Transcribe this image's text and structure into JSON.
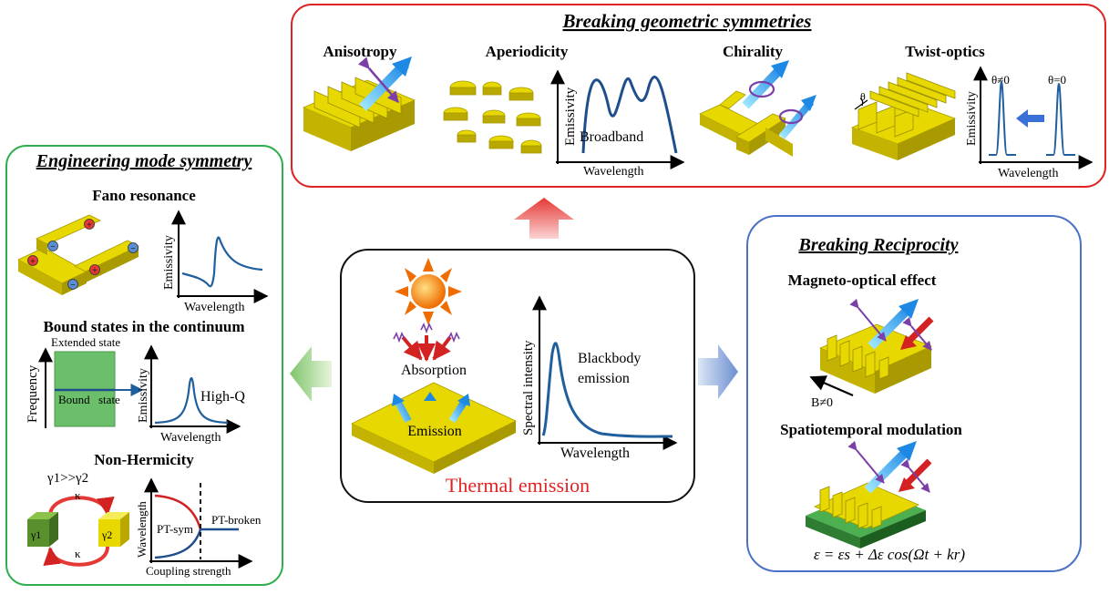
{
  "panels": {
    "geometric": {
      "title": "Breaking geometric symmetries",
      "anisotropy": "Anisotropy",
      "aperiodicity": "Aperiodicity",
      "chirality": "Chirality",
      "twist": "Twist-optics",
      "emissivity": "Emissivity",
      "wavelength": "Wavelength",
      "broadband": "Broadband",
      "theta_neq": "θ≠0",
      "theta_eq": "θ=0",
      "theta": "θ"
    },
    "mode": {
      "title": "Engineering mode symmetry",
      "fano": "Fano resonance",
      "bic": "Bound states in the continuum",
      "nonherm": "Non-Hermicity",
      "emissivity": "Emissivity",
      "wavelength": "Wavelength",
      "frequency": "Frequency",
      "extended": "Extended state",
      "bound": "Bound",
      "state": "state",
      "highq": "High-Q",
      "gamma_rel": "γ1>>γ2",
      "kappa": "κ",
      "gamma1": "γ1",
      "gamma2": "γ2",
      "ptsym": "PT-sym",
      "ptbroken": "PT-broken",
      "coupling": "Coupling strength",
      "plus": "+",
      "minus": "−"
    },
    "thermal": {
      "title": "Thermal emission",
      "absorption": "Absorption",
      "emission": "Emission",
      "spectral": "Spectral intensity",
      "wavelength": "Wavelength",
      "blackbody1": "Blackbody",
      "blackbody2": "emission"
    },
    "reciprocity": {
      "title": "Breaking Reciprocity",
      "magneto": "Magneto-optical effect",
      "bfield": "B≠0",
      "spatio": "Spatiotemporal modulation",
      "equation": "ε = εs + Δε cos(Ωt + kr)"
    }
  },
  "colors": {
    "geometric_border": "#e02424",
    "mode_border": "#2fae4e",
    "reciprocity_border": "#4a72c4",
    "thermal_border": "#111111",
    "gold": "#e6d800",
    "curve": "#1f5f9e",
    "thermal_title": "#e02424"
  }
}
